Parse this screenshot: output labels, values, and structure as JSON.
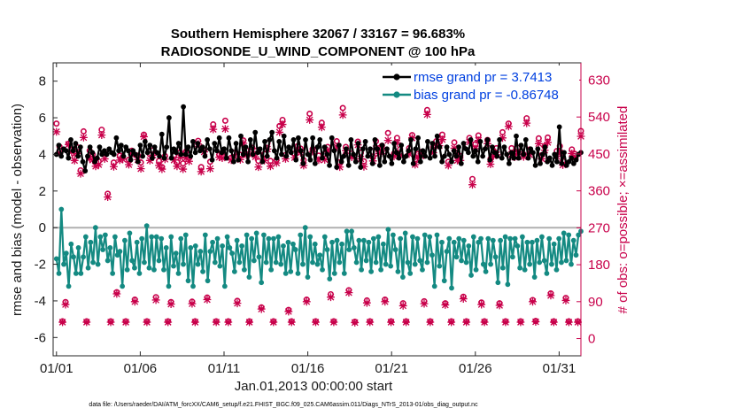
{
  "chart_data": {
    "type": "line",
    "title_line1": "Southern Hemisphere 32067 / 33167 = 96.683%",
    "title_line2": "RADIOSONDE_U_WIND_COMPONENT @ 100 hPa",
    "xlabel": "Jan.01,2013 00:00:00 start",
    "ylabel_left": "rmse and bias (model - observation)",
    "ylabel_right": "# of obs: o=possible; ×=assimilated",
    "footnote": "data file: /Users/raeder/DAI/ATM_forcXX/CAM6_setup/f.e21.FHIST_BGC.f09_025.CAM6assim.011/Diags_NTrS_2013-01/obs_diag_output.nc",
    "xlim": [
      0.8,
      32.3
    ],
    "ylim_left": [
      -7,
      9
    ],
    "ylim_right": [
      -42,
      672
    ],
    "x_tick_labels": [
      "01/01",
      "01/06",
      "01/11",
      "01/16",
      "01/21",
      "01/26",
      "01/31"
    ],
    "x_tick_days": [
      1,
      6,
      11,
      16,
      21,
      26,
      31
    ],
    "y_left_ticks": [
      "8",
      "6",
      "4",
      "2",
      "0",
      "-2",
      "-4",
      "-6"
    ],
    "y_right_ticks": [
      "630",
      "540",
      "450",
      "360",
      "270",
      "180",
      "90",
      "0"
    ],
    "colors": {
      "rmse": "#000000",
      "bias": "#148a82",
      "counts": "#c8004a",
      "legend_text": "#0040e0",
      "zero_line": "#b0b0b0"
    },
    "series": [
      {
        "name": "rmse grand pr = 3.7413",
        "axis": "left",
        "values": [
          4.0,
          4.5,
          3.9,
          4.3,
          4.2,
          3.8,
          4.8,
          4.2,
          4.6,
          3.9,
          4.4,
          3.6,
          3.1,
          3.9,
          4.4,
          4.1,
          3.6,
          3.8,
          4.4,
          4.0,
          4.2,
          4.0,
          4.3,
          4.1,
          4.0,
          4.9,
          4.2,
          4.5,
          3.9,
          4.4,
          4.2,
          3.7,
          4.2,
          4.0,
          3.6,
          4.5,
          3.9,
          4.7,
          4.1,
          4.5,
          3.8,
          4.4,
          4.1,
          3.9,
          5.1,
          3.8,
          4.4,
          6.0,
          3.8,
          4.3,
          4.1,
          4.6,
          4.0,
          6.6,
          4.0,
          4.4,
          3.9,
          4.7,
          4.1,
          4.6,
          4.2,
          4.4,
          3.9,
          4.8,
          4.3,
          3.7,
          4.6,
          4.2,
          4.9,
          4.1,
          4.3,
          3.8,
          4.9,
          4.2,
          3.6,
          4.6,
          3.7,
          5.0,
          4.0,
          4.4,
          3.6,
          4.8,
          4.0,
          5.2,
          4.1,
          4.3,
          3.6,
          4.7,
          3.9,
          4.8,
          5.2,
          4.2,
          3.8,
          4.7,
          4.0,
          5.0,
          3.9,
          4.4,
          4.1,
          4.8,
          3.7,
          4.9,
          4.2,
          3.5,
          4.8,
          4.0,
          3.7,
          4.9,
          3.5,
          4.4,
          4.8,
          3.8,
          4.4,
          4.0,
          3.4,
          4.9,
          4.2,
          3.3,
          4.5,
          3.6,
          3.9,
          4.3,
          3.4,
          4.8,
          4.0,
          3.6,
          4.6,
          3.3,
          4.3,
          4.7,
          3.9,
          4.3,
          3.5,
          4.8,
          4.3,
          3.4,
          4.5,
          3.6,
          4.3,
          3.9,
          3.5,
          4.6,
          4.1,
          3.8,
          4.5,
          3.6,
          3.9,
          4.2,
          4.8,
          3.5,
          4.3,
          4.9,
          3.6,
          4.2,
          3.9,
          4.7,
          3.8,
          4.6,
          3.9,
          5.0,
          4.4,
          3.6,
          3.9,
          4.4,
          4.0,
          3.6,
          4.2,
          3.9,
          4.4,
          3.5,
          4.6,
          4.3,
          4.1,
          4.8,
          3.9,
          4.2,
          3.6,
          4.7,
          3.9,
          4.3,
          4.8,
          3.7,
          4.4,
          4.1,
          3.9,
          4.8,
          3.8,
          4.4,
          4.0,
          3.5,
          4.1,
          3.8,
          5.0,
          3.8,
          4.5,
          4.0,
          4.8,
          3.8,
          4.3,
          4.1,
          3.4,
          4.3,
          3.5,
          4.0,
          4.4,
          3.6,
          3.8,
          3.4,
          4.0,
          3.6,
          5.5,
          3.5,
          4.1,
          3.4,
          3.6,
          3.8,
          3.5,
          3.7,
          4.0,
          4.1
        ]
      },
      {
        "name": "bias grand pr = -0.86748",
        "axis": "left",
        "values": [
          -1.7,
          -2.5,
          1.0,
          -2.0,
          -1.4,
          -3.2,
          -0.9,
          -1.6,
          -2.5,
          -1.1,
          -2.5,
          -1.6,
          -0.5,
          -2.2,
          -0.8,
          -1.9,
          0.0,
          -2.0,
          -0.5,
          -1.2,
          -0.4,
          -1.8,
          -1.1,
          -2.5,
          -0.5,
          -1.5,
          -1.3,
          -3.2,
          -0.7,
          -2.3,
          -0.3,
          -1.8,
          -2.2,
          -0.8,
          -2.5,
          -0.6,
          -1.9,
          0.1,
          -2.2,
          -0.5,
          -2.3,
          -0.5,
          -1.8,
          -0.6,
          -2.3,
          -1.1,
          -3.2,
          -0.5,
          -2.1,
          -1.4,
          -2.5,
          -0.6,
          -2.0,
          -0.4,
          -2.9,
          -1.1,
          -3.2,
          -1.0,
          -2.0,
          -1.3,
          -2.4,
          -0.4,
          -2.9,
          -1.3,
          -0.8,
          -1.9,
          -0.6,
          -2.1,
          -1.0,
          -3.2,
          -0.5,
          -1.1,
          -1.4,
          -2.4,
          -0.7,
          -1.9,
          -1.0,
          -2.3,
          -0.4,
          -2.7,
          -0.6,
          -1.8,
          -0.3,
          -1.6,
          -3.0,
          -0.4,
          -1.9,
          -0.6,
          -2.3,
          -0.6,
          -1.9,
          -0.5,
          -2.0,
          -1.0,
          -2.5,
          -0.8,
          -2.4,
          -0.9,
          -1.2,
          -2.5,
          -0.4,
          -2.0,
          0.0,
          -2.7,
          -0.5,
          -1.9,
          -0.9,
          -2.0,
          -1.5,
          -2.3,
          -0.5,
          -1.2,
          -2.8,
          -0.8,
          -2.5,
          -0.7,
          -1.9,
          -0.9,
          -2.5,
          -0.2,
          -1.2,
          -0.2,
          -1.1,
          -1.9,
          -0.7,
          -2.3,
          -0.7,
          -1.8,
          -0.8,
          -2.4,
          -0.6,
          -1.9,
          -0.5,
          -2.3,
          -0.9,
          -2.0,
          -0.1,
          -2.1,
          -0.4,
          -1.2,
          -2.4,
          -0.6,
          -2.7,
          -0.3,
          -1.9,
          -2.5,
          -0.5,
          -2.0,
          -0.6,
          -1.8,
          -2.3,
          -0.4,
          -1.9,
          -0.5,
          -1.5,
          -3.2,
          -0.4,
          -2.1,
          -0.8,
          -2.9,
          -1.3,
          -0.6,
          -3.3,
          -0.8,
          -1.6,
          -0.6,
          -1.8,
          -0.7,
          -1.9,
          -1.0,
          -2.6,
          -0.5,
          -2.3,
          -0.8,
          -0.6,
          -2.0,
          -2.4,
          -0.6,
          -2.0,
          -0.7,
          -1.6,
          -3.0,
          -0.7,
          -2.2,
          -0.5,
          -3.1,
          -0.6,
          -1.6,
          -0.6,
          -1.0,
          -2.2,
          -0.5,
          -2.3,
          -0.8,
          -2.0,
          -0.8,
          -2.7,
          -0.7,
          -1.9,
          -0.5,
          -1.8,
          -2.5,
          -0.6,
          -2.0,
          -0.9,
          -2.3,
          -0.6,
          -1.9,
          -0.3,
          -1.8,
          -0.4,
          -2.0,
          -0.7,
          -1.5,
          -0.4,
          -0.2
        ]
      },
      {
        "name": "obs possible",
        "axis": "right",
        "marker": "o",
        "values": [
          524,
          468,
          42,
          89,
          475,
          461,
          442,
          466,
          410,
          505,
          42,
          458,
          449,
          437,
          432,
          509,
          452,
          353,
          42,
          429,
          113,
          446,
          443,
          42,
          436,
          458,
          95,
          446,
          429,
          497,
          42,
          449,
          459,
          101,
          433,
          418,
          445,
          42,
          89,
          446,
          430,
          454,
          427,
          456,
          441,
          90,
          42,
          482,
          418,
          459,
          100,
          431,
          522,
          42,
          448,
          453,
          531,
          42,
          441,
          453,
          92,
          448,
          483,
          459,
          42,
          465,
          457,
          433,
          76,
          450,
          476,
          433,
          42,
          435,
          518,
          533,
          447,
          70,
          42,
          451,
          469,
          463,
          435,
          95,
          548,
          462,
          42,
          446,
          526,
          450,
          467,
          108,
          42,
          481,
          430,
          562,
          467,
          118,
          451,
          41,
          480,
          453,
          432,
          93,
          42,
          444,
          481,
          464,
          470,
          95,
          501,
          42,
          451,
          489,
          462,
          86,
          42,
          464,
          496,
          436,
          450,
          455,
          91,
          557,
          42,
          467,
          481,
          480,
          497,
          86,
          431,
          42,
          478,
          447,
          445,
          102,
          42,
          489,
          389,
          474,
          495,
          88,
          42,
          484,
          438,
          458,
          464,
          86,
          503,
          42,
          524,
          464,
          453,
          465,
          42,
          449,
          537,
          461,
          94,
          43,
          488,
          447,
          469,
          490,
          110,
          42,
          457,
          469,
          433,
          99,
          42,
          461,
          450,
          42,
          506
        ]
      },
      {
        "name": "obs assimilated",
        "axis": "right",
        "marker": "x",
        "values": [
          504,
          452,
          40,
          83,
          473,
          455,
          434,
          451,
          402,
          490,
          40,
          439,
          435,
          420,
          424,
          496,
          438,
          345,
          40,
          419,
          109,
          435,
          437,
          40,
          424,
          448,
          90,
          436,
          414,
          492,
          40,
          434,
          447,
          94,
          422,
          413,
          437,
          40,
          84,
          435,
          420,
          442,
          413,
          440,
          432,
          85,
          40,
          474,
          407,
          455,
          95,
          414,
          510,
          40,
          442,
          440,
          511,
          40,
          435,
          443,
          86,
          436,
          476,
          447,
          40,
          450,
          443,
          418,
          72,
          434,
          462,
          420,
          40,
          428,
          503,
          522,
          438,
          66,
          40,
          441,
          457,
          453,
          422,
          90,
          533,
          456,
          40,
          435,
          515,
          436,
          458,
          101,
          40,
          467,
          418,
          545,
          458,
          112,
          442,
          39,
          472,
          438,
          419,
          87,
          40,
          433,
          463,
          451,
          457,
          90,
          483,
          40,
          444,
          477,
          447,
          80,
          40,
          450,
          489,
          424,
          443,
          445,
          85,
          546,
          40,
          453,
          470,
          470,
          485,
          82,
          422,
          40,
          464,
          434,
          434,
          97,
          40,
          479,
          375,
          463,
          483,
          83,
          40,
          475,
          425,
          445,
          448,
          81,
          489,
          40,
          517,
          449,
          442,
          455,
          40,
          443,
          525,
          448,
          90,
          41,
          475,
          438,
          459,
          478,
          105,
          40,
          444,
          453,
          423,
          93,
          40,
          451,
          440,
          40,
          493
        ]
      }
    ]
  }
}
